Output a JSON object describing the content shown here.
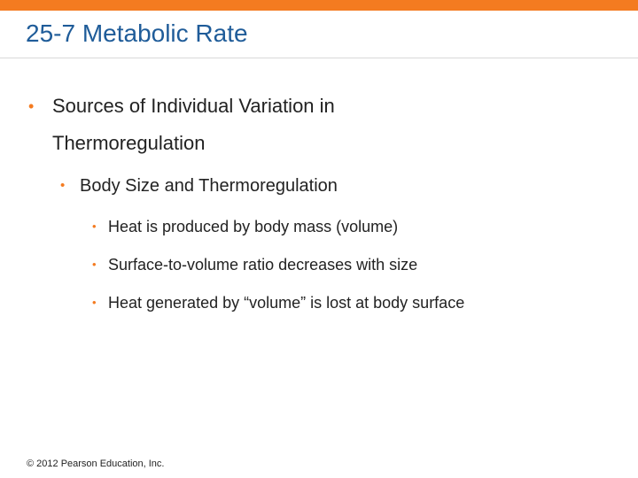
{
  "slide": {
    "title": "25-7 Metabolic Rate",
    "bullets": [
      {
        "level": 1,
        "text": "Sources of Individual Variation in Thermoregulation"
      },
      {
        "level": 2,
        "text": "Body Size and Thermoregulation"
      },
      {
        "level": 3,
        "text": "Heat is produced by body mass (volume)"
      },
      {
        "level": 3,
        "text": "Surface-to-volume ratio decreases with size"
      },
      {
        "level": 3,
        "text": "Heat generated by “volume” is lost at body surface"
      }
    ],
    "footer": "© 2012 Pearson Education, Inc."
  },
  "colors": {
    "accent_bar": "#F47B20",
    "title": "#1F5C99",
    "bullet_marker": "#F47B20",
    "body_text": "#222222"
  }
}
